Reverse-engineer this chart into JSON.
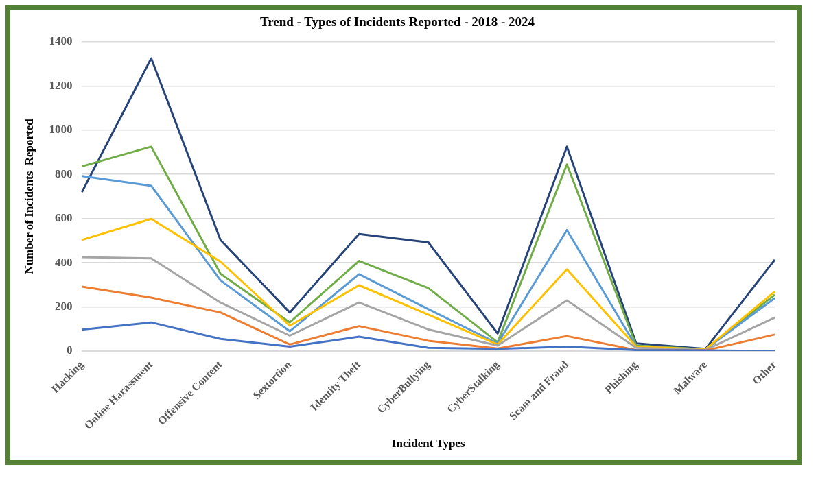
{
  "chart_data": {
    "type": "line",
    "title": "Trend - Types of Incidents Reported - 2018 - 2024",
    "xlabel": "Incident Types",
    "ylabel": "Number of Incidents  Reported",
    "categories": [
      "Hacking",
      "Online Harassment",
      "Offensive Content",
      "Sextortion",
      "Identity Theft",
      "CyberBullying",
      "CyberStalking",
      "Scam and Fraud",
      "Phishing",
      "Malware",
      "Other"
    ],
    "series": [
      {
        "color": "#4472c4",
        "values": [
          97,
          130,
          55,
          20,
          65,
          15,
          10,
          20,
          5,
          3,
          0
        ]
      },
      {
        "color": "#ed7d31",
        "values": [
          292,
          242,
          175,
          30,
          113,
          47,
          12,
          68,
          5,
          3,
          75
        ]
      },
      {
        "color": "#a5a5a5",
        "values": [
          425,
          420,
          220,
          70,
          220,
          98,
          25,
          230,
          15,
          5,
          152
        ]
      },
      {
        "color": "#ffc000",
        "values": [
          503,
          598,
          405,
          115,
          298,
          165,
          30,
          370,
          20,
          8,
          270
        ]
      },
      {
        "color": "#5b9bd5",
        "values": [
          792,
          748,
          320,
          90,
          348,
          190,
          35,
          548,
          20,
          8,
          240
        ]
      },
      {
        "color": "#70ad47",
        "values": [
          836,
          925,
          350,
          130,
          408,
          285,
          40,
          845,
          25,
          8,
          255
        ]
      },
      {
        "color": "#264478",
        "values": [
          720,
          1325,
          503,
          175,
          530,
          492,
          80,
          925,
          35,
          10,
          413
        ]
      }
    ],
    "ylim": [
      0,
      1400
    ],
    "yticks": [
      0,
      200,
      400,
      600,
      800,
      1000,
      1200,
      1400
    ],
    "grid": "y",
    "legend": false,
    "marker": "none",
    "line_style": "solid"
  }
}
